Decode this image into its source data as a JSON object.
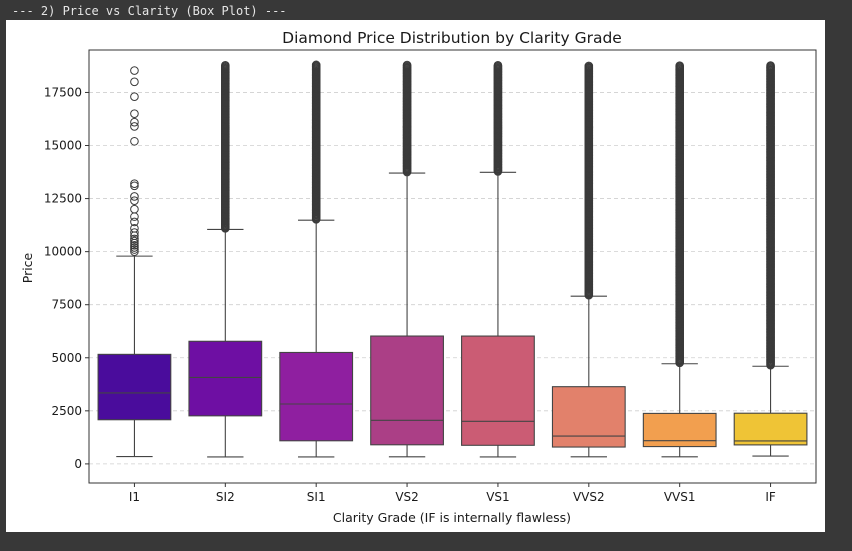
{
  "console": {
    "header": "--- 2) Price vs Clarity (Box Plot) ---"
  },
  "chart_data": {
    "type": "box",
    "title": "Diamond Price Distribution by Clarity Grade",
    "xlabel": "Clarity Grade (IF is internally flawless)",
    "ylabel": "Price",
    "ylim": [
      -900,
      19500
    ],
    "yticks": [
      0,
      2500,
      5000,
      7500,
      10000,
      12500,
      15000,
      17500
    ],
    "grid": "y-dashed",
    "categories": [
      "I1",
      "SI2",
      "SI1",
      "VS2",
      "VS1",
      "VVS2",
      "VVS1",
      "IF"
    ],
    "colors": [
      "#4a0c9c",
      "#6e0fa3",
      "#8f1fa0",
      "#ab3f86",
      "#cb5c74",
      "#e2816b",
      "#f29f4f",
      "#efc436"
    ],
    "boxes": [
      {
        "label": "I1",
        "whislo": 345,
        "q1": 2080,
        "med": 3344,
        "q3": 5161,
        "whishi": 9789,
        "fliers": [
          10000,
          10100,
          10200,
          10300,
          10400,
          10500,
          10600,
          10750,
          10900,
          11100,
          11400,
          11650,
          12000,
          12400,
          12600,
          13100,
          13200,
          15200,
          15900,
          16100,
          16500,
          17300,
          18000,
          18530
        ]
      },
      {
        "label": "SI2",
        "whislo": 326,
        "q1": 2264,
        "med": 4072,
        "q3": 5777,
        "whishi": 11046,
        "flier_range": [
          11100,
          18804
        ]
      },
      {
        "label": "SI1",
        "whislo": 326,
        "q1": 1089,
        "med": 2822,
        "q3": 5250,
        "whishi": 11480,
        "flier_range": [
          11520,
          18818
        ]
      },
      {
        "label": "VS2",
        "whislo": 334,
        "q1": 900,
        "med": 2054,
        "q3": 6024,
        "whishi": 13700,
        "flier_range": [
          13750,
          18823
        ]
      },
      {
        "label": "VS1",
        "whislo": 327,
        "q1": 876,
        "med": 2005,
        "q3": 6023,
        "whishi": 13738,
        "flier_range": [
          13780,
          18795
        ]
      },
      {
        "label": "VVS2",
        "whislo": 336,
        "q1": 794,
        "med": 1311,
        "q3": 3638,
        "whishi": 7900,
        "flier_range": [
          7950,
          18768
        ]
      },
      {
        "label": "VVS1",
        "whislo": 336,
        "q1": 816,
        "med": 1093,
        "q3": 2379,
        "whishi": 4718,
        "flier_range": [
          4760,
          18777
        ]
      },
      {
        "label": "IF",
        "whislo": 369,
        "q1": 895,
        "med": 1080,
        "q3": 2388,
        "whishi": 4600,
        "flier_range": [
          4650,
          18806
        ]
      }
    ]
  }
}
